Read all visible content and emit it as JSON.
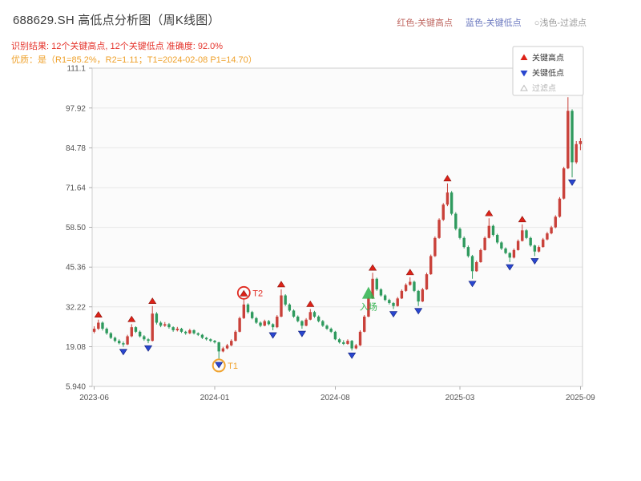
{
  "header": {
    "title": "688629.SH 高低点分析图（周K线图）",
    "legend_top": [
      {
        "label": "红色-关键高点",
        "color": "#bf6660"
      },
      {
        "label": "蓝色-关键低点",
        "color": "#6b78bf"
      },
      {
        "label": "○浅色-过滤点",
        "color": "#9a9a9a"
      }
    ],
    "result_line": "识别结果: 12个关键高点, 12个关键低点  准确度: 92.0%",
    "quality_line": "优质：是（R1=85.2%，R2=1.11；T1=2024-02-08 P1=14.70）"
  },
  "chart_data": {
    "type": "candlestick",
    "timeframe": "weekly",
    "symbol": "688629.SH",
    "title": "688629.SH 高低点分析图（周K线图）",
    "ylim": [
      5.94,
      111.1
    ],
    "yticks": [
      5.94,
      19.08,
      32.22,
      45.36,
      58.5,
      71.64,
      84.78,
      97.92,
      111.1
    ],
    "ytick_labels": [
      "5.940",
      "19.08",
      "32.22",
      "45.36",
      "58.50",
      "71.64",
      "84.78",
      "97.92",
      "111.1"
    ],
    "xtick_weeks": [
      0,
      29,
      58,
      88,
      117
    ],
    "xtick_labels": [
      "2023-06",
      "2024-01",
      "2024-08",
      "2025-03",
      "2025-09"
    ],
    "grid": true,
    "up_color": "#c9413a",
    "down_color": "#2f9a5e",
    "high_marker_color": "#dd2218",
    "high_marker_edge": "#8b0f08",
    "low_marker_color": "#2946cf",
    "low_marker_edge": "#101f7a",
    "filtered_color": "#bbbbbb",
    "candles": [
      [
        24,
        25.8,
        23.5,
        25
      ],
      [
        25,
        28,
        24.6,
        27
      ],
      [
        27,
        27.4,
        24.4,
        25
      ],
      [
        25,
        25.4,
        23,
        23.5
      ],
      [
        23.5,
        23.9,
        21.6,
        22
      ],
      [
        22,
        22.4,
        20.5,
        21
      ],
      [
        21,
        21.5,
        19.8,
        20.2
      ],
      [
        20.2,
        20.8,
        19,
        19.8
      ],
      [
        19.8,
        23,
        19.6,
        22.5
      ],
      [
        22.5,
        26.5,
        22.2,
        25.5
      ],
      [
        25.5,
        25.8,
        23.6,
        24
      ],
      [
        24,
        24.4,
        22.1,
        22.5
      ],
      [
        22.5,
        22.9,
        21,
        21.5
      ],
      [
        21.5,
        21.9,
        20.2,
        21
      ],
      [
        21,
        32.5,
        20.8,
        30
      ],
      [
        30,
        30.5,
        26.4,
        27
      ],
      [
        27,
        27.5,
        25.5,
        26
      ],
      [
        26,
        27.2,
        25.6,
        26.5
      ],
      [
        26.5,
        26.9,
        25,
        25.5
      ],
      [
        25.5,
        25.8,
        24,
        24.5
      ],
      [
        24.5,
        25.6,
        24.1,
        25
      ],
      [
        25,
        25.3,
        23.6,
        24
      ],
      [
        24,
        24.3,
        23,
        23.5
      ],
      [
        23.5,
        25,
        23.2,
        24.5
      ],
      [
        24.5,
        24.8,
        23.1,
        23.5
      ],
      [
        23.5,
        23.8,
        22.6,
        23
      ],
      [
        23,
        23.3,
        21.6,
        22
      ],
      [
        22,
        22.3,
        21.1,
        21.5
      ],
      [
        21.5,
        21.8,
        20.6,
        21
      ],
      [
        21,
        21.3,
        20.1,
        20.5
      ],
      [
        20.5,
        20.7,
        14.7,
        17.5
      ],
      [
        17.5,
        19,
        17.2,
        18.5
      ],
      [
        18.5,
        20,
        18.2,
        19.5
      ],
      [
        19.5,
        21.5,
        19.2,
        21
      ],
      [
        21,
        24.5,
        20.8,
        24
      ],
      [
        24,
        29,
        23.8,
        28.5
      ],
      [
        28.5,
        35,
        28.2,
        33
      ],
      [
        33,
        33.4,
        30,
        30.5
      ],
      [
        30.5,
        30.9,
        28.1,
        28.5
      ],
      [
        28.5,
        28.9,
        26.6,
        27
      ],
      [
        27,
        27.4,
        25.5,
        26
      ],
      [
        26,
        28,
        25.8,
        27.5
      ],
      [
        27.5,
        27.9,
        26.1,
        26.5
      ],
      [
        26.5,
        26.8,
        24.5,
        25.5
      ],
      [
        25.5,
        29.5,
        25.2,
        29
      ],
      [
        29,
        38,
        28.8,
        36
      ],
      [
        36,
        36.4,
        32.5,
        33
      ],
      [
        33,
        33.4,
        30.6,
        31
      ],
      [
        31,
        31.4,
        28.6,
        29
      ],
      [
        29,
        29.4,
        27.1,
        27.5
      ],
      [
        27.5,
        27.8,
        25,
        26
      ],
      [
        26,
        28.5,
        25.8,
        28
      ],
      [
        28,
        31.5,
        27.8,
        30.5
      ],
      [
        30.5,
        30.9,
        28.6,
        29
      ],
      [
        29,
        29.4,
        27.1,
        27.5
      ],
      [
        27.5,
        27.9,
        25.6,
        26
      ],
      [
        26,
        26.4,
        24.6,
        25
      ],
      [
        25,
        25.4,
        23.6,
        24
      ],
      [
        24,
        24.3,
        21.2,
        21.5
      ],
      [
        21.5,
        21.9,
        20.1,
        20.5
      ],
      [
        20.5,
        21.2,
        19.6,
        20
      ],
      [
        20,
        21.5,
        19.7,
        21
      ],
      [
        21,
        21.3,
        17.8,
        18.5
      ],
      [
        18.5,
        20,
        18.2,
        19.5
      ],
      [
        19.5,
        24.5,
        19.3,
        24
      ],
      [
        24,
        29.5,
        23.8,
        29
      ],
      [
        29,
        35.5,
        28.8,
        35
      ],
      [
        35,
        43.5,
        34.8,
        41.5
      ],
      [
        41.5,
        41.9,
        37.5,
        38
      ],
      [
        38,
        38.4,
        35.6,
        36
      ],
      [
        36,
        36.4,
        34.1,
        34.5
      ],
      [
        34.5,
        34.9,
        33,
        33.5
      ],
      [
        33.5,
        33.8,
        31.5,
        32.5
      ],
      [
        32.5,
        35.5,
        32.3,
        35
      ],
      [
        35,
        38,
        34.8,
        37.5
      ],
      [
        37.5,
        40,
        37.2,
        39.5
      ],
      [
        39.5,
        42,
        39.2,
        40.5
      ],
      [
        40.5,
        40.9,
        37.1,
        37.5
      ],
      [
        37.5,
        37.8,
        32.5,
        34
      ],
      [
        34,
        38.5,
        33.8,
        38
      ],
      [
        38,
        43.5,
        37.8,
        43
      ],
      [
        43,
        49.5,
        42.8,
        49
      ],
      [
        49,
        55.5,
        48.7,
        55
      ],
      [
        55,
        61.5,
        54.7,
        61
      ],
      [
        61,
        66.5,
        60.6,
        66
      ],
      [
        66,
        73,
        65.5,
        70
      ],
      [
        70,
        70.5,
        62.5,
        63
      ],
      [
        63,
        63.5,
        57.5,
        58
      ],
      [
        58,
        58.5,
        54.5,
        55
      ],
      [
        55,
        55.5,
        51.5,
        52
      ],
      [
        52,
        52.5,
        48.5,
        49
      ],
      [
        49,
        49.4,
        41.5,
        44
      ],
      [
        44,
        47.5,
        43.8,
        47
      ],
      [
        47,
        51.5,
        46.8,
        51
      ],
      [
        51,
        55.5,
        50.8,
        55
      ],
      [
        55,
        61.5,
        54.8,
        59
      ],
      [
        59,
        59.4,
        55.5,
        56
      ],
      [
        56,
        56.4,
        53,
        53.5
      ],
      [
        53.5,
        53.9,
        51,
        51.5
      ],
      [
        51.5,
        51.9,
        49.6,
        50
      ],
      [
        50,
        50.3,
        47,
        48.5
      ],
      [
        48.5,
        51.5,
        48.2,
        51
      ],
      [
        51,
        54.5,
        50.8,
        54
      ],
      [
        54,
        59.5,
        53.8,
        57.5
      ],
      [
        57.5,
        57.9,
        54.6,
        55
      ],
      [
        55,
        55.4,
        52.1,
        52.5
      ],
      [
        52.5,
        52.8,
        49,
        50.5
      ],
      [
        50.5,
        52.5,
        50.2,
        52
      ],
      [
        52,
        55,
        51.8,
        54.5
      ],
      [
        54.5,
        57,
        54.2,
        56.5
      ],
      [
        56.5,
        59,
        56.2,
        58.5
      ],
      [
        58.5,
        62.5,
        58.2,
        62
      ],
      [
        62,
        68.5,
        61.7,
        68
      ],
      [
        68,
        78.5,
        67.7,
        78
      ],
      [
        78,
        101.5,
        77.7,
        97
      ],
      [
        97,
        97.5,
        75,
        80
      ],
      [
        80,
        87,
        79.5,
        86
      ],
      [
        86,
        88,
        84,
        87
      ]
    ],
    "key_highs": [
      1,
      9,
      14,
      36,
      45,
      52,
      67,
      76,
      85,
      95,
      103,
      114
    ],
    "key_lows": [
      7,
      13,
      30,
      43,
      50,
      62,
      72,
      78,
      91,
      100,
      106,
      115
    ],
    "annotations": {
      "t1": {
        "week": 30,
        "label": "T1",
        "color": "#f0a32f"
      },
      "t2": {
        "week": 36,
        "label": "T2",
        "color": "#e02a20"
      },
      "entry": {
        "week": 66,
        "price": 36.5,
        "label": "入场",
        "color": "#2eb24b"
      }
    },
    "chart_legend": [
      {
        "label": "关键高点",
        "marker": "up-triangle",
        "color": "#dd2218",
        "text_color": "#333333"
      },
      {
        "label": "关键低点",
        "marker": "down-triangle",
        "color": "#2946cf",
        "text_color": "#333333"
      },
      {
        "label": "过滤点",
        "marker": "hollow-triangle",
        "color": "#bbbbbb",
        "text_color": "#b5b5b5"
      }
    ]
  }
}
